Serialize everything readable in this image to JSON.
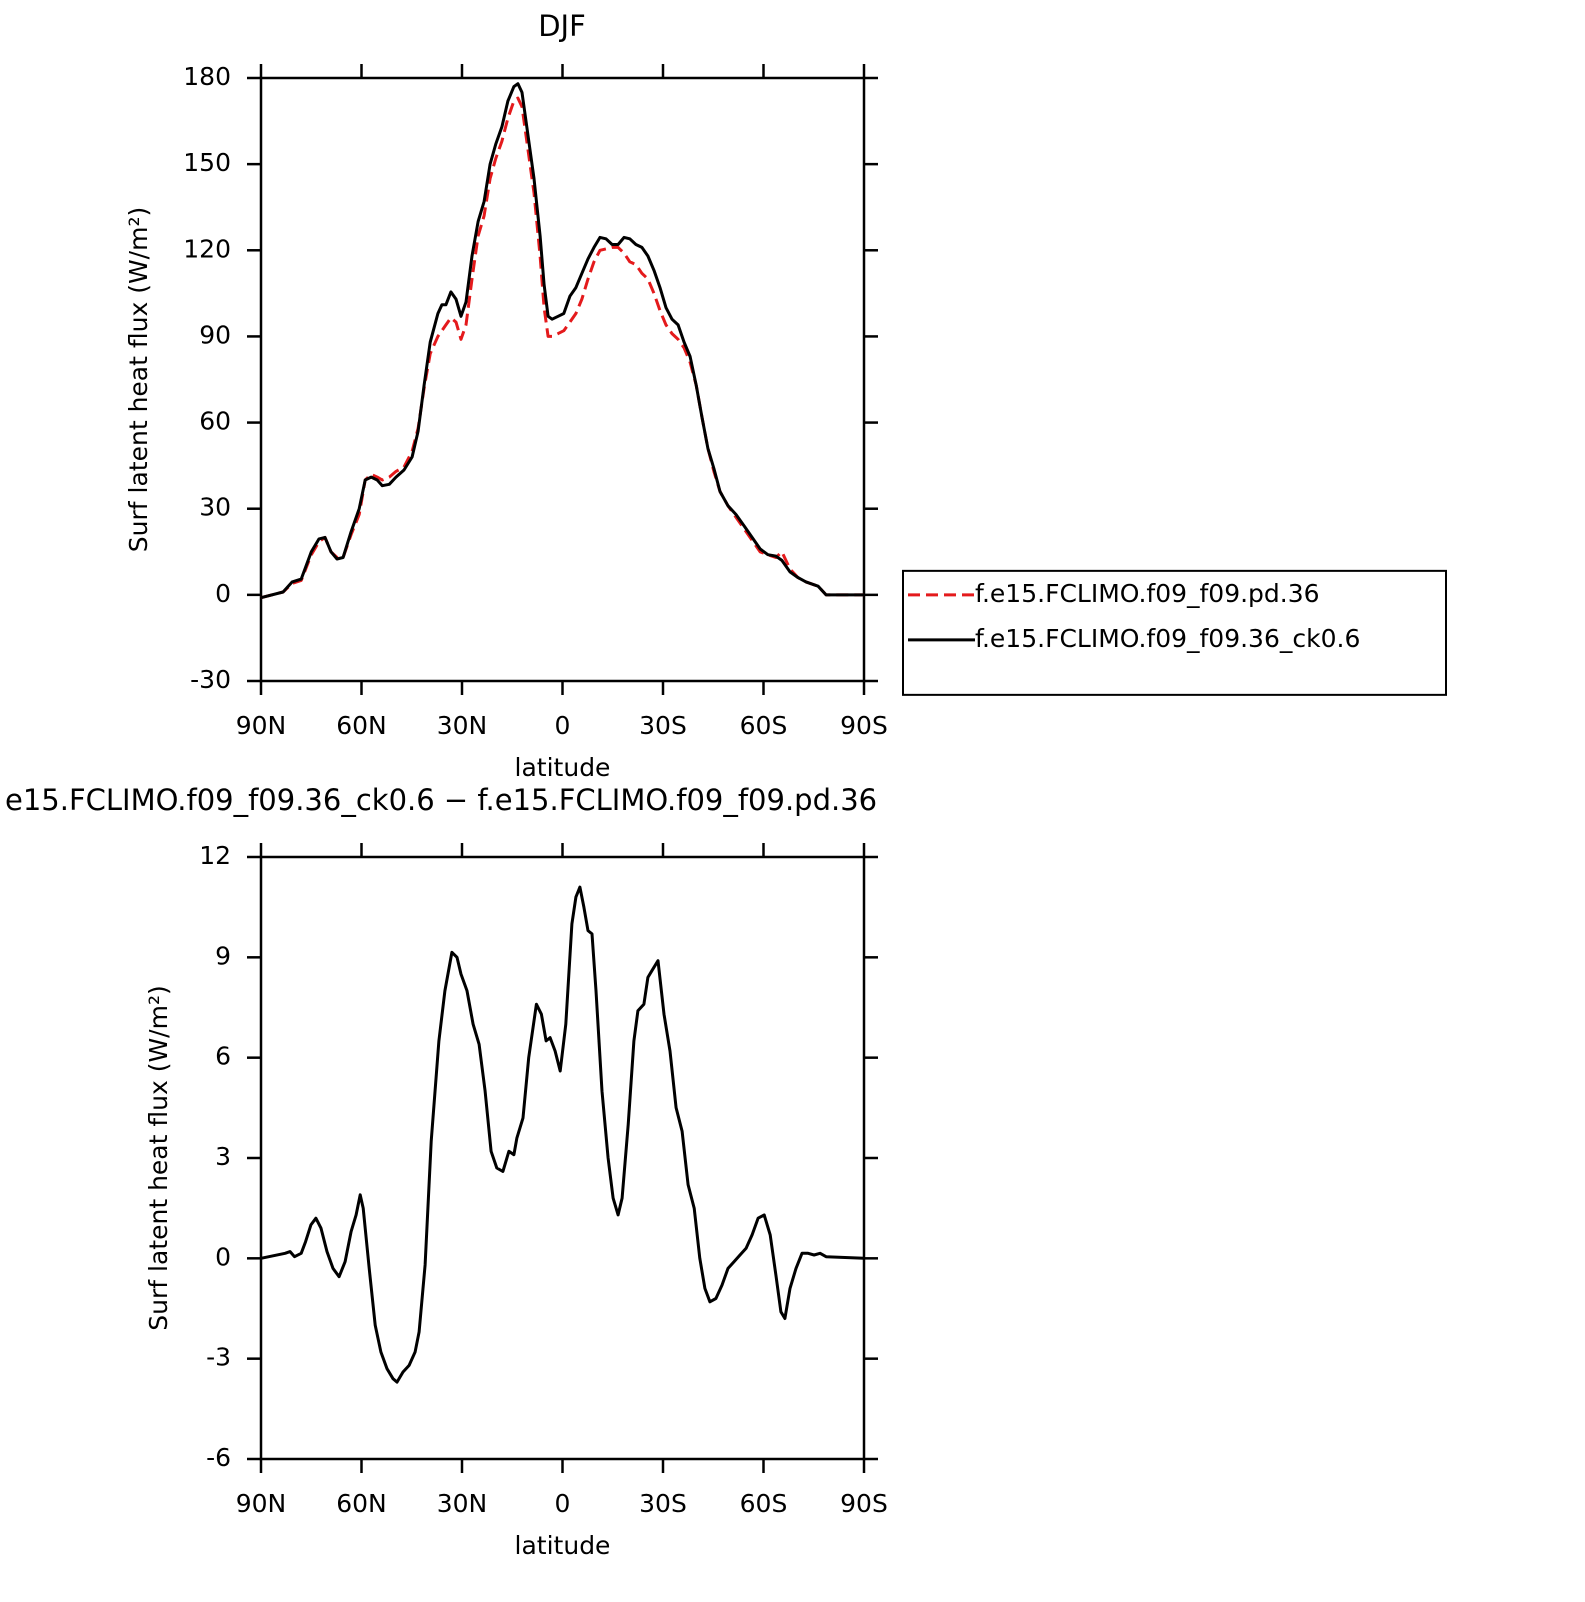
{
  "chart_data": [
    {
      "type": "line",
      "title": "DJF",
      "x_label": "latitude",
      "y_label": "Surf latent heat flux (W/m²)",
      "x": [
        90,
        83.4,
        80.7,
        78,
        75,
        72.7,
        70.9,
        69.1,
        67.3,
        65.5,
        63.1,
        60.7,
        58.9,
        57.1,
        55.3,
        53.8,
        51.7,
        49.7,
        47.3,
        44.9,
        43.1,
        41.3,
        39.5,
        37.2,
        36,
        34.8,
        33.3,
        31.8,
        30.3,
        28.8,
        27,
        25.2,
        23.4,
        21.6,
        19.9,
        18.1,
        16.3,
        14.5,
        13.3,
        12.1,
        10.3,
        8.5,
        6.7,
        5.5,
        4.3,
        3.1,
        1.3,
        -0.4,
        -2.2,
        -4,
        -5.8,
        -7.6,
        -9.4,
        -11.2,
        -13,
        -14.8,
        -16.6,
        -18.4,
        -20.1,
        -21.9,
        -23.7,
        -25.5,
        -27.3,
        -29.1,
        -30.9,
        -32.7,
        -34.5,
        -36.3,
        -38.1,
        -39.9,
        -41.6,
        -43.4,
        -45.2,
        -47,
        -49.4,
        -51.8,
        -54.2,
        -56.6,
        -59,
        -61.3,
        -63.7,
        -65.5,
        -67.9,
        -70.3,
        -72.7,
        -76.3,
        -78.7,
        -90
      ],
      "series": [
        {
          "name": "f.e15.FCLIMO.f09_f09.pd.36",
          "color": "#e41a1c",
          "dash": true,
          "values": [
            -1,
            1,
            4,
            5,
            14,
            18.5,
            20,
            15,
            13,
            13,
            21,
            28,
            40,
            42,
            41,
            40,
            41,
            43,
            44.5,
            50,
            58,
            72,
            84,
            90,
            92,
            94,
            96.5,
            95,
            89,
            94,
            110,
            125,
            132,
            145,
            152,
            158,
            166,
            172,
            173,
            170,
            155,
            140,
            118,
            100,
            90,
            90,
            91,
            92,
            95,
            98,
            103,
            110,
            116,
            120,
            120.5,
            121,
            121,
            119,
            116,
            115,
            112,
            110,
            105,
            99,
            94,
            91,
            89,
            86,
            81,
            73,
            62,
            51,
            43,
            36,
            31,
            27,
            23,
            19,
            15,
            14,
            13,
            15,
            9,
            6,
            4.5,
            3,
            0,
            0
          ]
        },
        {
          "name": "f.e15.FCLIMO.f09_f09.36_ck0.6",
          "color": "#000000",
          "dash": false,
          "values": [
            -1,
            1,
            4.5,
            5.5,
            15,
            19.5,
            20,
            15,
            12.5,
            13,
            22,
            30,
            40,
            41,
            40,
            38,
            38.5,
            41,
            43.5,
            48,
            57,
            73,
            88,
            98,
            101,
            101,
            105.5,
            103,
            97,
            102,
            118,
            130,
            137,
            150,
            157,
            163,
            172,
            177,
            178,
            175,
            160,
            145,
            125,
            108,
            97,
            96,
            97,
            98,
            104,
            107,
            112,
            117,
            121,
            124.5,
            124,
            122,
            122,
            124.5,
            124,
            122,
            121,
            118,
            113,
            107,
            100,
            96,
            94,
            88,
            83,
            73,
            62,
            51,
            44,
            36,
            31,
            28,
            24,
            20,
            16,
            14,
            13.5,
            12,
            8,
            6,
            4.5,
            3,
            0,
            0
          ]
        }
      ],
      "xlim": [
        90,
        -90
      ],
      "xticks": [
        {
          "value": 90,
          "label": "90N"
        },
        {
          "value": 60,
          "label": "60N"
        },
        {
          "value": 30,
          "label": "30N"
        },
        0,
        {
          "value": -30,
          "label": "30S"
        },
        {
          "value": -60,
          "label": "60S"
        },
        {
          "value": -90,
          "label": "90S"
        }
      ],
      "ylim": [
        -30,
        180
      ],
      "yticks": [
        -30,
        0,
        30,
        60,
        90,
        120,
        150,
        180
      ],
      "legend": "right"
    },
    {
      "type": "line",
      "title": "e15.FCLIMO.f09_f09.36_ck0.6 − f.e15.FCLIMO.f09_f09.pd.36",
      "x_label": "latitude",
      "y_label": "Surf latent heat flux (W/m²)",
      "x": [
        90,
        82.8,
        81.3,
        80,
        78,
        76.7,
        75.1,
        73.6,
        72.1,
        70.3,
        68.5,
        66.7,
        64.9,
        63.1,
        61.6,
        60.4,
        59.5,
        57.7,
        55.9,
        54.2,
        52.4,
        50.6,
        49.4,
        47.6,
        45.8,
        44,
        42.8,
        41,
        39.2,
        36.9,
        35.1,
        33,
        31.5,
        30.3,
        28.5,
        26.7,
        24.9,
        23.1,
        21.3,
        19.6,
        17.8,
        16,
        14.5,
        13.6,
        11.8,
        10.1,
        7.8,
        6.3,
        4.9,
        3.7,
        2.2,
        0.7,
        -1,
        -2.8,
        -4,
        -5.2,
        -6.4,
        -7.6,
        -8.8,
        -10,
        -11.8,
        -13.6,
        -15.1,
        -16.6,
        -17.8,
        -19.6,
        -21.3,
        -22.5,
        -24.3,
        -25.5,
        -26.7,
        -28.5,
        -30.3,
        -32.1,
        -33.9,
        -35.7,
        -37.5,
        -39.3,
        -41,
        -42.5,
        -44,
        -45.8,
        -47.6,
        -49.4,
        -51.2,
        -53,
        -54.8,
        -56.6,
        -58.4,
        -60.2,
        -62,
        -63.7,
        -65.2,
        -66.4,
        -67.9,
        -69.7,
        -71.5,
        -73.3,
        -75.1,
        -76.9,
        -78.7,
        -90
      ],
      "values": [
        0,
        0.15,
        0.2,
        0.05,
        0.15,
        0.5,
        1.0,
        1.2,
        0.9,
        0.2,
        -0.3,
        -0.55,
        -0.1,
        0.8,
        1.3,
        1.9,
        1.5,
        -0.3,
        -2,
        -2.8,
        -3.3,
        -3.6,
        -3.7,
        -3.4,
        -3.2,
        -2.8,
        -2.2,
        -0.2,
        3.5,
        6.5,
        8,
        9.15,
        9,
        8.5,
        8,
        7,
        6.4,
        5,
        3.2,
        2.7,
        2.6,
        3.2,
        3.1,
        3.6,
        4.2,
        6,
        7.6,
        7.3,
        6.5,
        6.6,
        6.2,
        5.6,
        7,
        10,
        10.8,
        11.1,
        10.5,
        9.8,
        9.7,
        8,
        5,
        3,
        1.8,
        1.3,
        1.8,
        4,
        6.5,
        7.4,
        7.6,
        8.4,
        8.6,
        8.9,
        7.3,
        6.2,
        4.5,
        3.8,
        2.2,
        1.5,
        0,
        -0.9,
        -1.3,
        -1.2,
        -0.8,
        -0.3,
        -0.1,
        0.1,
        0.3,
        0.7,
        1.2,
        1.3,
        0.7,
        -0.5,
        -1.6,
        -1.8,
        -0.9,
        -0.3,
        0.15,
        0.15,
        0.1,
        0.15,
        0.05,
        0
      ],
      "color": "#000000",
      "xlim": [
        90,
        -90
      ],
      "xticks": [
        {
          "value": 90,
          "label": "90N"
        },
        {
          "value": 60,
          "label": "60N"
        },
        {
          "value": 30,
          "label": "30N"
        },
        0,
        {
          "value": -30,
          "label": "30S"
        },
        {
          "value": -60,
          "label": "60S"
        },
        {
          "value": -90,
          "label": "90S"
        }
      ],
      "ylim": [
        -6,
        12
      ],
      "yticks": [
        -6,
        -3,
        0,
        3,
        6,
        9,
        12
      ]
    }
  ]
}
